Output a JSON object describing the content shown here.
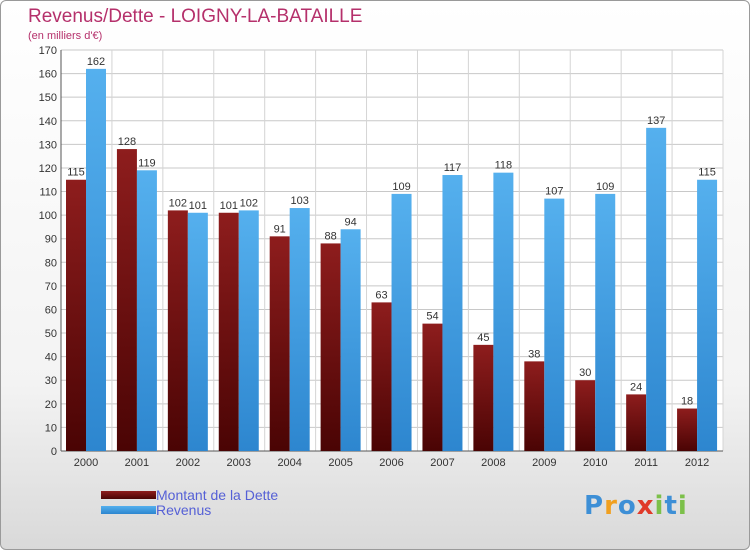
{
  "header": {
    "title": "Revenus/Dette - LOIGNY-LA-BATAILLE",
    "subtitle": "(en milliers d'€)"
  },
  "legend": {
    "items": [
      {
        "label": "Montant de la Dette",
        "color": "#6e0b0b"
      },
      {
        "label": "Revenus",
        "color": "#3f9de0"
      }
    ]
  },
  "logo": {
    "text": "Proxiti",
    "letters": [
      "P",
      "r",
      "o",
      "x",
      "i",
      "t",
      "i"
    ],
    "colors": [
      "#3d8fd6",
      "#f0a020",
      "#3d8fd6",
      "#e03a2a",
      "#7cc04a",
      "#3d8fd6",
      "#7cc04a"
    ]
  },
  "chart_data": {
    "type": "bar",
    "title": "Revenus/Dette - LOIGNY-LA-BATAILLE",
    "ylabel": "(en milliers d'€)",
    "xlabel": "",
    "ylim": [
      0,
      170
    ],
    "yticks": [
      0,
      10,
      20,
      30,
      40,
      50,
      60,
      70,
      80,
      90,
      100,
      110,
      120,
      130,
      140,
      150,
      160,
      170
    ],
    "grid": true,
    "legend_position": "bottom-left",
    "categories": [
      "2000",
      "2001",
      "2002",
      "2003",
      "2004",
      "2005",
      "2006",
      "2007",
      "2008",
      "2009",
      "2010",
      "2011",
      "2012"
    ],
    "series": [
      {
        "name": "Montant de la Dette",
        "color": "#6e0b0b",
        "values": [
          115,
          128,
          102,
          101,
          91,
          88,
          63,
          54,
          45,
          38,
          30,
          24,
          18
        ]
      },
      {
        "name": "Revenus",
        "color": "#3f9de0",
        "values": [
          162,
          119,
          101,
          102,
          103,
          94,
          109,
          117,
          118,
          107,
          109,
          137,
          115
        ]
      }
    ]
  }
}
